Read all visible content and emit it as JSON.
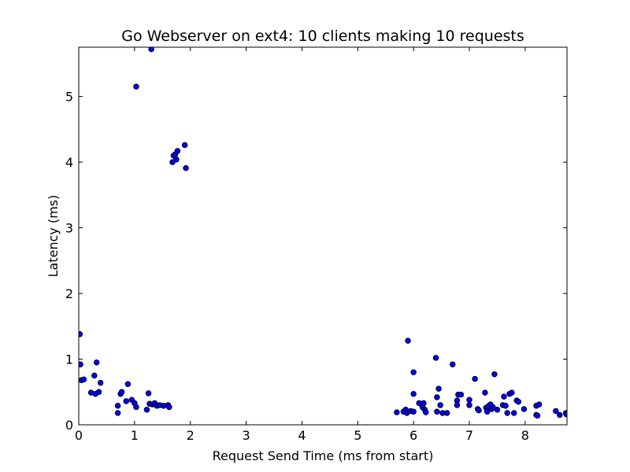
{
  "chart_data": {
    "type": "scatter",
    "title": "Go Webserver on ext4: 10 clients making 10 requests",
    "xlabel": "Request Send Time (ms from start)",
    "ylabel": "Latency (ms)",
    "xlim": [
      0,
      8.75
    ],
    "ylim": [
      0,
      5.75
    ],
    "xticks": [
      0,
      1,
      2,
      3,
      4,
      5,
      6,
      7,
      8
    ],
    "yticks": [
      0,
      1,
      2,
      3,
      4,
      5
    ],
    "grid": false,
    "marker_color": "#0000ff",
    "marker_edge": "#000000",
    "series": [
      {
        "points": [
          [
            0.02,
            1.38
          ],
          [
            0.03,
            0.92
          ],
          [
            0.05,
            0.68
          ],
          [
            0.09,
            0.69
          ],
          [
            0.22,
            0.49
          ],
          [
            0.28,
            0.75
          ],
          [
            0.3,
            0.47
          ],
          [
            0.32,
            0.95
          ],
          [
            0.36,
            0.5
          ],
          [
            0.39,
            0.64
          ],
          [
            0.7,
            0.29
          ],
          [
            0.7,
            0.18
          ],
          [
            0.75,
            0.47
          ],
          [
            0.77,
            0.5
          ],
          [
            0.85,
            0.36
          ],
          [
            0.88,
            0.62
          ],
          [
            0.95,
            0.38
          ],
          [
            1.0,
            0.33
          ],
          [
            1.03,
            0.27
          ],
          [
            1.03,
            5.15
          ],
          [
            1.22,
            0.23
          ],
          [
            1.25,
            0.48
          ],
          [
            1.27,
            0.32
          ],
          [
            1.3,
            5.72
          ],
          [
            1.32,
            0.31
          ],
          [
            1.36,
            0.33
          ],
          [
            1.4,
            0.29
          ],
          [
            1.45,
            0.3
          ],
          [
            1.52,
            0.29
          ],
          [
            1.6,
            0.3
          ],
          [
            1.62,
            0.27
          ],
          [
            1.68,
            4.0
          ],
          [
            1.7,
            4.1
          ],
          [
            1.73,
            4.12
          ],
          [
            1.75,
            4.04
          ],
          [
            1.77,
            4.17
          ],
          [
            1.9,
            4.26
          ],
          [
            1.92,
            3.91
          ],
          [
            5.7,
            0.19
          ],
          [
            5.82,
            0.2
          ],
          [
            5.86,
            0.23
          ],
          [
            5.88,
            0.18
          ],
          [
            5.9,
            1.28
          ],
          [
            5.95,
            0.21
          ],
          [
            6.0,
            0.2
          ],
          [
            6.0,
            0.47
          ],
          [
            6.0,
            0.8
          ],
          [
            6.1,
            0.33
          ],
          [
            6.16,
            0.27
          ],
          [
            6.18,
            0.33
          ],
          [
            6.2,
            0.23
          ],
          [
            6.22,
            0.19
          ],
          [
            6.4,
            1.02
          ],
          [
            6.42,
            0.42
          ],
          [
            6.42,
            0.2
          ],
          [
            6.45,
            0.55
          ],
          [
            6.48,
            0.3
          ],
          [
            6.52,
            0.18
          ],
          [
            6.6,
            0.18
          ],
          [
            6.7,
            0.92
          ],
          [
            6.78,
            0.37
          ],
          [
            6.78,
            0.3
          ],
          [
            6.8,
            0.46
          ],
          [
            6.85,
            0.46
          ],
          [
            7.0,
            0.38
          ],
          [
            7.0,
            0.3
          ],
          [
            7.1,
            0.7
          ],
          [
            7.15,
            0.24
          ],
          [
            7.17,
            0.22
          ],
          [
            7.28,
            0.49
          ],
          [
            7.3,
            0.26
          ],
          [
            7.32,
            0.2
          ],
          [
            7.35,
            0.29
          ],
          [
            7.38,
            0.31
          ],
          [
            7.4,
            0.24
          ],
          [
            7.42,
            0.27
          ],
          [
            7.45,
            0.77
          ],
          [
            7.5,
            0.23
          ],
          [
            7.6,
            0.3
          ],
          [
            7.62,
            0.43
          ],
          [
            7.65,
            0.29
          ],
          [
            7.68,
            0.18
          ],
          [
            7.72,
            0.47
          ],
          [
            7.76,
            0.49
          ],
          [
            7.8,
            0.18
          ],
          [
            7.85,
            0.37
          ],
          [
            7.88,
            0.35
          ],
          [
            7.98,
            0.24
          ],
          [
            8.2,
            0.29
          ],
          [
            8.2,
            0.15
          ],
          [
            8.22,
            0.14
          ],
          [
            8.25,
            0.31
          ],
          [
            8.55,
            0.21
          ],
          [
            8.62,
            0.15
          ],
          [
            8.73,
            0.18
          ],
          [
            8.74,
            0.16
          ]
        ]
      }
    ]
  }
}
